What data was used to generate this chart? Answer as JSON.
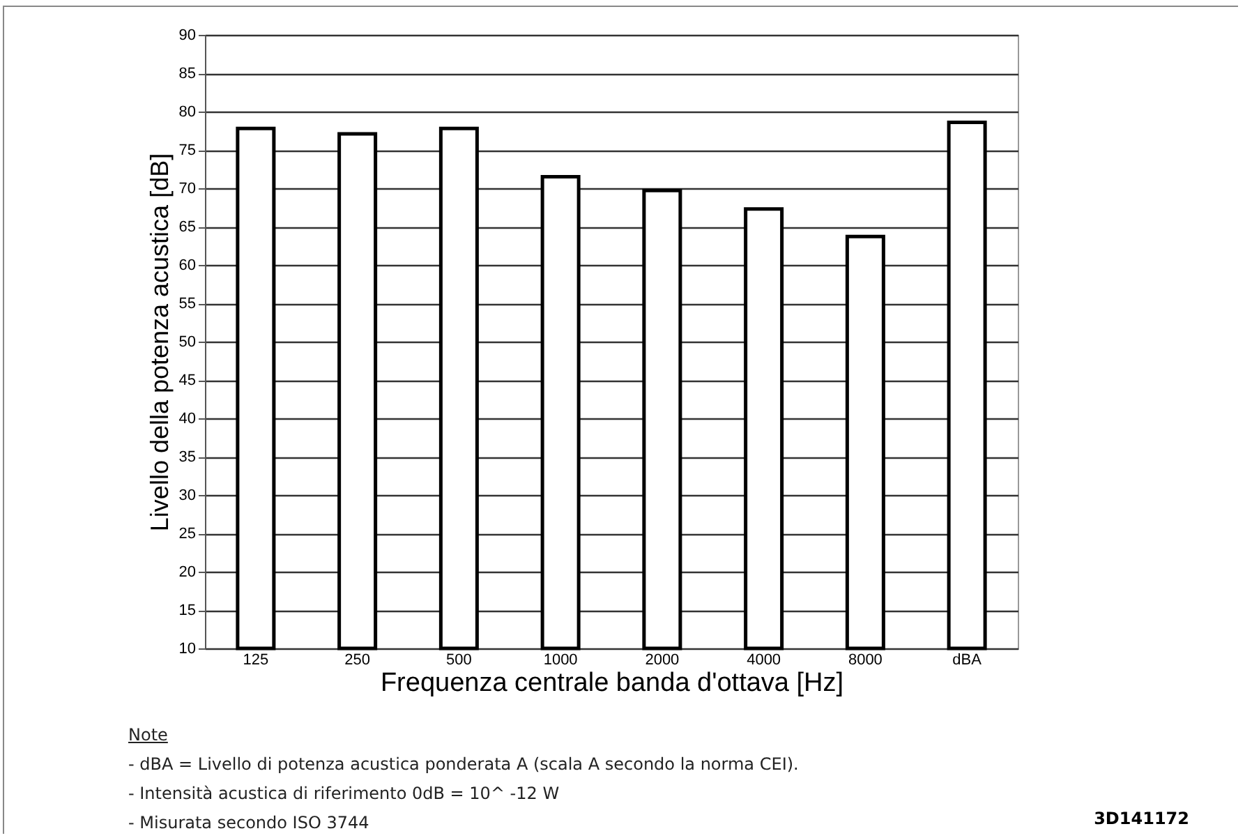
{
  "chart_data": {
    "type": "bar",
    "xlabel": "Frequenza centrale banda d'ottava [Hz]",
    "ylabel": "Livello della potenza acustica [dB]",
    "categories": [
      "125",
      "250",
      "500",
      "1000",
      "2000",
      "4000",
      "8000",
      "dBA"
    ],
    "values": [
      77.8,
      77.1,
      77.8,
      71.5,
      69.7,
      67.3,
      63.7,
      78.6
    ],
    "color": "#ffffff",
    "ylim": [
      10,
      90
    ],
    "yticks": [
      10,
      15,
      20,
      25,
      30,
      35,
      40,
      45,
      50,
      55,
      60,
      65,
      70,
      75,
      80,
      85,
      90
    ],
    "grid": "y",
    "annotations": [
      "Note",
      "- dBA = Livello di potenza acustica ponderata A (scala A secondo la norma CEI).",
      "- Intensità acustica di riferimento 0dB = 10^ -12 W",
      "- Misurata secondo ISO 3744",
      "3D141172"
    ]
  }
}
